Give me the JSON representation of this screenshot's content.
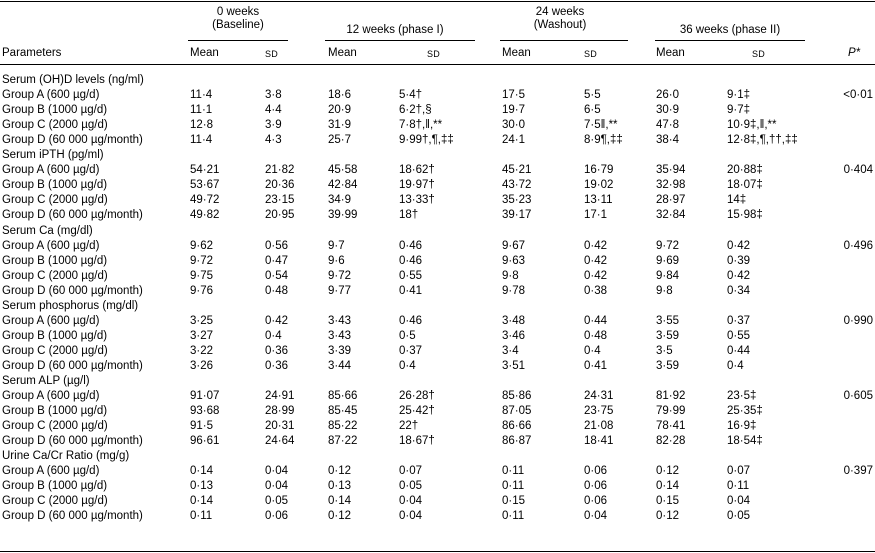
{
  "columns": {
    "param_label": "Parameters",
    "p_label": "P*",
    "periods": [
      {
        "line1": "0 weeks",
        "line2": "(Baseline)"
      },
      {
        "line1": "12 weeks (phase I)",
        "line2": ""
      },
      {
        "line1": "24 weeks",
        "line2": "(Washout)"
      },
      {
        "line1": "36 weeks (phase II)",
        "line2": ""
      }
    ],
    "mean_label": "Mean",
    "sd_label": "SD"
  },
  "sections": [
    {
      "title": "Serum (OH)D levels (ng/ml)",
      "p": "<0·01",
      "rows": [
        {
          "group": "Group A (600 µg/d)",
          "v": [
            "11·4",
            "3·8",
            "18·6",
            "5·4†",
            "17·5",
            "5·5",
            "26·0",
            "9·1‡"
          ]
        },
        {
          "group": "Group B (1000 µg/d)",
          "v": [
            "11·1",
            "4·4",
            "20·9",
            "6·2†,§",
            "19·7",
            "6·5",
            "30·9",
            "9·7‡"
          ]
        },
        {
          "group": "Group C (2000 µg/d)",
          "v": [
            "12·8",
            "3·9",
            "31·9",
            "7·8†,ǁ,**",
            "30·0",
            "7·5ǁ,**",
            "47·8",
            "10·9‡,ǁ,**"
          ]
        },
        {
          "group": "Group D (60 000 µg/month)",
          "v": [
            "11·4",
            "4·3",
            "25·7",
            "9·99†,¶,‡‡",
            "24·1",
            "8·9¶,‡‡",
            "38·4",
            "12·8‡,¶,††,‡‡"
          ]
        }
      ]
    },
    {
      "title": "Serum iPTH (pg/ml)",
      "p": "0·404",
      "rows": [
        {
          "group": "Group A (600 µg/d)",
          "v": [
            "54·21",
            "21·82",
            "45·58",
            "18·62†",
            "45·21",
            "16·79",
            "35·94",
            "20·88‡"
          ]
        },
        {
          "group": "Group B (1000 µg/d)",
          "v": [
            "53·67",
            "20·36",
            "42·84",
            "19·97†",
            "43·72",
            "19·02",
            "32·98",
            "18·07‡"
          ]
        },
        {
          "group": "Group C (2000 µg/d)",
          "v": [
            "49·72",
            "23·15",
            "34·9",
            "13·33†",
            "35·23",
            "13·11",
            "28·97",
            "14‡"
          ]
        },
        {
          "group": "Group D (60 000 µg/month)",
          "v": [
            "49·82",
            "20·95",
            "39·99",
            "18†",
            "39·17",
            "17·1",
            "32·84",
            "15·98‡"
          ]
        }
      ]
    },
    {
      "title": "Serum Ca (mg/dl)",
      "p": "0·496",
      "rows": [
        {
          "group": "Group A (600 µg/d)",
          "v": [
            "9·62",
            "0·56",
            "9·7",
            "0·46",
            "9·67",
            "0·42",
            "9·72",
            "0·42"
          ]
        },
        {
          "group": "Group B (1000 µg/d)",
          "v": [
            "9·72",
            "0·47",
            "9·6",
            "0·46",
            "9·63",
            "0·42",
            "9·69",
            "0·39"
          ]
        },
        {
          "group": "Group C (2000 µg/d)",
          "v": [
            "9·75",
            "0·54",
            "9·72",
            "0·55",
            "9·8",
            "0·42",
            "9·84",
            "0·42"
          ]
        },
        {
          "group": "Group D (60 000 µg/month)",
          "v": [
            "9·76",
            "0·48",
            "9·77",
            "0·41",
            "9·78",
            "0·38",
            "9·8",
            "0·34"
          ]
        }
      ]
    },
    {
      "title": "Serum phosphorus (mg/dl)",
      "p": "0·990",
      "rows": [
        {
          "group": "Group A (600 µg/d)",
          "v": [
            "3·25",
            "0·42",
            "3·43",
            "0·46",
            "3·48",
            "0·44",
            "3·55",
            "0·37"
          ]
        },
        {
          "group": "Group B (1000 µg/d)",
          "v": [
            "3·27",
            "0·4",
            "3·43",
            "0·5",
            "3·46",
            "0·48",
            "3·59",
            "0·55"
          ]
        },
        {
          "group": "Group C (2000 µg/d)",
          "v": [
            "3·22",
            "0·36",
            "3·39",
            "0·37",
            "3·4",
            "0·4",
            "3·5",
            "0·44"
          ]
        },
        {
          "group": "Group D (60 000 µg/month)",
          "v": [
            "3·26",
            "0·36",
            "3·44",
            "0·4",
            "3·51",
            "0·41",
            "3·59",
            "0·4"
          ]
        }
      ]
    },
    {
      "title": "Serum ALP (µg/l)",
      "p": "0·605",
      "rows": [
        {
          "group": "Group A (600 µg/d)",
          "v": [
            "91·07",
            "24·91",
            "85·66",
            "26·28†",
            "85·86",
            "24·31",
            "81·92",
            "23·5‡"
          ]
        },
        {
          "group": "Group B (1000 µg/d)",
          "v": [
            "93·68",
            "28·99",
            "85·45",
            "25·42†",
            "87·05",
            "23·75",
            "79·99",
            "25·35‡"
          ]
        },
        {
          "group": "Group C (2000 µg/d)",
          "v": [
            "91·5",
            "20·31",
            "85·22",
            "22†",
            "86·66",
            "21·08",
            "78·41",
            "16·9‡"
          ]
        },
        {
          "group": "Group D (60 000 µg/month)",
          "v": [
            "96·61",
            "24·64",
            "87·22",
            "18·67†",
            "86·87",
            "18·41",
            "82·28",
            "18·54‡"
          ]
        }
      ]
    },
    {
      "title": "Urine Ca/Cr Ratio (mg/g)",
      "p": "0·397",
      "rows": [
        {
          "group": "Group A (600 µg/d)",
          "v": [
            "0·14",
            "0·04",
            "0·12",
            "0·07",
            "0·11",
            "0·06",
            "0·12",
            "0·07"
          ]
        },
        {
          "group": "Group B (1000 µg/d)",
          "v": [
            "0·13",
            "0·04",
            "0·13",
            "0·05",
            "0·11",
            "0·06",
            "0·14",
            "0·11"
          ]
        },
        {
          "group": "Group C (2000 µg/d)",
          "v": [
            "0·14",
            "0·05",
            "0·14",
            "0·04",
            "0·15",
            "0·06",
            "0·15",
            "0·04"
          ]
        },
        {
          "group": "Group D (60 000 µg/month)",
          "v": [
            "0·11",
            "0·06",
            "0·12",
            "0·04",
            "0·11",
            "0·04",
            "0·12",
            "0·05"
          ]
        }
      ]
    }
  ]
}
